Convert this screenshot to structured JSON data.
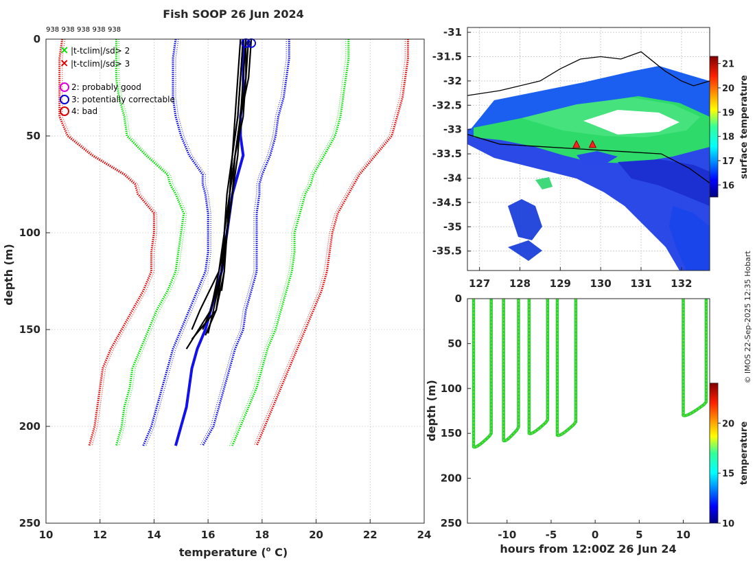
{
  "title": "Fish SOOP 26 Jun 2024",
  "profile_ids": [
    "938",
    "938",
    "938",
    "938",
    "938"
  ],
  "credit": "© IMOS 22-Sep-2025 12:35 Hobart",
  "legend": {
    "sd2": "|t-tclim|/sd> 2",
    "sd3": "|t-tclim|/sd> 3",
    "flag2": "2: probably good",
    "flag3": "3: potentially correctable",
    "flag4": "4: bad"
  },
  "colors": {
    "green": "#00dd00",
    "red": "#dd0000",
    "blue": "#0000dd",
    "magenta": "#dd00dd",
    "profile": "#000000",
    "mean": "#1111ee"
  },
  "chart_data": [
    {
      "type": "line",
      "id": "profile",
      "title": "Fish SOOP 26 Jun 2024",
      "xlabel": "temperature (° C)",
      "ylabel": "depth (m)",
      "xlim": [
        10,
        24
      ],
      "ylim": [
        250,
        0
      ],
      "xticks": [
        10,
        12,
        14,
        16,
        18,
        20,
        22,
        24
      ],
      "yticks": [
        0,
        50,
        100,
        150,
        200,
        250
      ],
      "grid": true,
      "depths": [
        0,
        10,
        20,
        30,
        40,
        50,
        60,
        70,
        75,
        80,
        90,
        100,
        110,
        120,
        130,
        140,
        150,
        160,
        170,
        180,
        190,
        200,
        210
      ],
      "series": [
        {
          "name": "clim -3sd",
          "color": "red",
          "values": [
            10.6,
            10.5,
            10.5,
            10.5,
            10.5,
            10.8,
            11.7,
            12.9,
            13.3,
            13.4,
            14.0,
            14.0,
            13.9,
            13.9,
            13.6,
            13.2,
            12.8,
            12.4,
            12.1,
            12.0,
            11.9,
            11.8,
            11.6
          ]
        },
        {
          "name": "clim -2sd",
          "color": "green",
          "values": [
            12.6,
            12.6,
            12.6,
            12.7,
            12.9,
            13.0,
            13.7,
            14.5,
            14.6,
            14.8,
            15.1,
            15.0,
            14.9,
            14.8,
            14.5,
            14.1,
            13.8,
            13.5,
            13.2,
            13.1,
            12.9,
            12.8,
            12.6
          ]
        },
        {
          "name": "clim -1sd",
          "color": "blue",
          "values": [
            14.8,
            14.7,
            14.7,
            14.7,
            14.8,
            15.0,
            15.3,
            15.8,
            15.8,
            15.9,
            16.0,
            16.0,
            16.0,
            15.9,
            15.6,
            15.3,
            15.0,
            14.7,
            14.5,
            14.3,
            14.1,
            13.9,
            13.6
          ]
        },
        {
          "name": "clim +1sd",
          "color": "blue",
          "values": [
            19.0,
            19.0,
            18.9,
            18.8,
            18.6,
            18.5,
            18.3,
            18.0,
            17.9,
            17.9,
            17.8,
            17.8,
            17.8,
            17.8,
            17.6,
            17.4,
            17.3,
            17.0,
            16.8,
            16.6,
            16.4,
            16.2,
            15.8
          ]
        },
        {
          "name": "clim +2sd",
          "color": "green",
          "values": [
            21.2,
            21.2,
            21.1,
            21.0,
            20.9,
            20.7,
            20.3,
            19.9,
            19.8,
            19.6,
            19.4,
            19.2,
            19.2,
            19.1,
            18.9,
            18.7,
            18.5,
            18.2,
            18.0,
            17.8,
            17.5,
            17.2,
            16.9
          ]
        },
        {
          "name": "clim +3sd",
          "color": "red",
          "values": [
            23.4,
            23.4,
            23.3,
            23.2,
            23.0,
            22.8,
            22.2,
            21.6,
            21.4,
            21.2,
            20.8,
            20.6,
            20.5,
            20.4,
            20.2,
            19.9,
            19.6,
            19.3,
            19.0,
            18.7,
            18.4,
            18.1,
            17.8
          ]
        },
        {
          "name": "mean profile",
          "color": "mean",
          "values": [
            17.3,
            17.3,
            17.3,
            17.3,
            17.2,
            17.2,
            17.3,
            17.1,
            17.0,
            16.9,
            16.8,
            16.7,
            16.6,
            16.5,
            16.3,
            16.1,
            15.9,
            15.6,
            15.4,
            15.3,
            15.2,
            15.0,
            14.8
          ]
        }
      ],
      "casts": [
        {
          "depths": [
            0,
            20,
            40,
            60,
            80,
            100,
            120,
            140,
            155
          ],
          "values": [
            17.2,
            17.1,
            17.0,
            16.9,
            16.8,
            16.7,
            16.6,
            16.3,
            15.4
          ]
        },
        {
          "depths": [
            0,
            20,
            40,
            60,
            80,
            100,
            120,
            140,
            160
          ],
          "values": [
            17.4,
            17.3,
            17.2,
            17.0,
            16.8,
            16.6,
            16.4,
            16.1,
            15.2
          ]
        },
        {
          "depths": [
            0,
            20,
            40,
            60,
            80,
            100,
            120,
            140,
            150
          ],
          "values": [
            17.5,
            17.4,
            17.3,
            17.0,
            16.9,
            16.7,
            16.4,
            15.7,
            15.4
          ]
        },
        {
          "depths": [
            0,
            20,
            40,
            60,
            80,
            100,
            120,
            140,
            152
          ],
          "values": [
            17.3,
            17.2,
            17.1,
            16.9,
            16.7,
            16.6,
            16.5,
            16.2,
            16.0
          ]
        },
        {
          "depths": [
            0,
            20,
            40,
            60,
            80,
            100,
            120,
            140,
            153
          ],
          "values": [
            17.6,
            17.5,
            17.2,
            17.0,
            16.8,
            16.7,
            16.5,
            16.3,
            15.9
          ]
        },
        {
          "depths": [
            0,
            20,
            40,
            60,
            80,
            100,
            120,
            140,
            150
          ],
          "values": [
            17.4,
            17.4,
            17.2,
            17.1,
            16.9,
            16.7,
            16.5,
            16.1,
            15.8
          ]
        },
        {
          "depths": [
            0,
            20,
            40,
            60,
            80,
            100,
            120,
            130
          ],
          "values": [
            17.3,
            17.2,
            17.1,
            16.9,
            16.8,
            16.6,
            16.6,
            16.5
          ]
        }
      ],
      "flag_markers": [
        {
          "t": 17.4,
          "d": 1,
          "flag": 3
        },
        {
          "t": 17.6,
          "d": 1,
          "flag": 3
        }
      ]
    },
    {
      "type": "heatmap",
      "id": "sst-map",
      "xlabel": "",
      "ylabel": "",
      "xlim": [
        126.7,
        132.7
      ],
      "ylim": [
        -35.9,
        -30.9
      ],
      "xticks": [
        127,
        128,
        129,
        130,
        131,
        132
      ],
      "yticks": [
        -31,
        -31.5,
        -32,
        -32.5,
        -33,
        -33.5,
        -34,
        -34.5,
        -35,
        -35.5
      ],
      "colorbar": {
        "label": "surface temperature",
        "min": 15.5,
        "max": 21.3,
        "ticks": [
          16,
          17,
          18,
          19,
          20,
          21
        ]
      },
      "coastline_lon": [
        126.7,
        127.5,
        128.5,
        129.0,
        129.5,
        130.0,
        130.5,
        131.0,
        131.3,
        131.6,
        132.0,
        132.3,
        132.7
      ],
      "coastline_lat": [
        -32.3,
        -32.2,
        -32.0,
        -31.75,
        -31.55,
        -31.5,
        -31.55,
        -31.4,
        -31.6,
        -31.8,
        -32.0,
        -32.1,
        -32.0
      ],
      "track_lon": [
        126.7,
        127.5,
        128.5,
        129.5,
        130.5,
        131.5,
        132.2,
        132.7
      ],
      "track_lat": [
        -33.1,
        -33.3,
        -33.35,
        -33.4,
        -33.45,
        -33.5,
        -33.8,
        -34.1
      ],
      "cast_markers": [
        {
          "lon": 129.4,
          "lat": -33.3
        },
        {
          "lon": 129.8,
          "lat": -33.3
        }
      ]
    },
    {
      "type": "line",
      "id": "time-depth",
      "xlabel": "hours from 12:00Z 26 Jun 24",
      "ylabel": "depth (m)",
      "xlim": [
        -14.5,
        13
      ],
      "ylim": [
        250,
        0
      ],
      "xticks": [
        -10,
        -5,
        0,
        5,
        10
      ],
      "yticks": [
        0,
        50,
        100,
        150,
        200,
        250
      ],
      "colorbar": {
        "label": "temperature",
        "min": 10,
        "max": 24,
        "ticks": [
          10,
          15,
          20
        ]
      },
      "casts": [
        {
          "t0": -13.8,
          "t1": -11.8,
          "max_depth": 165
        },
        {
          "t0": -10.4,
          "t1": -8.7,
          "max_depth": 158
        },
        {
          "t0": -7.5,
          "t1": -5.4,
          "max_depth": 150
        },
        {
          "t0": -4.3,
          "t1": -2.2,
          "max_depth": 152
        },
        {
          "t0": 10.0,
          "t1": 12.6,
          "max_depth": 130
        }
      ]
    }
  ]
}
